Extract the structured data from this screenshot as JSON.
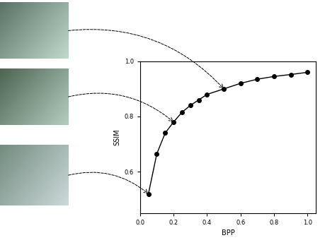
{
  "chart_data": {
    "type": "line",
    "x_label": "BPP",
    "y_label": "SSIM",
    "x": [
      0.05,
      0.1,
      0.15,
      0.2,
      0.25,
      0.3,
      0.35,
      0.4,
      0.5,
      0.6,
      0.7,
      0.8,
      0.9,
      1.0
    ],
    "values": [
      0.52,
      0.665,
      0.74,
      0.78,
      0.815,
      0.84,
      0.86,
      0.88,
      0.9,
      0.92,
      0.935,
      0.945,
      0.952,
      0.96
    ],
    "color": "#000000",
    "marker": "circle",
    "line_style": "solid",
    "xlim": [
      0.0,
      1.05
    ],
    "ylim": [
      0.45,
      1.0
    ],
    "xticks": [
      0.0,
      0.2,
      0.4,
      0.6,
      0.8,
      1.0
    ],
    "yticks": [
      0.6,
      0.8,
      1.0
    ],
    "grid": false
  }
}
